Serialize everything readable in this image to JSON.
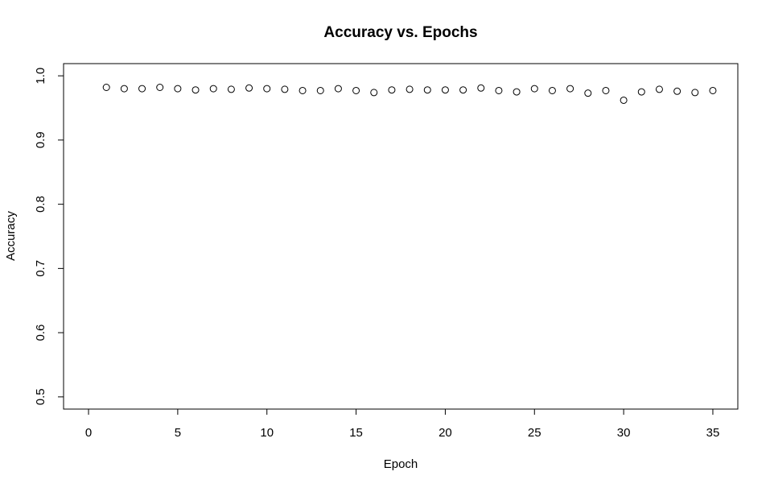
{
  "chart_data": {
    "type": "scatter",
    "title": "Accuracy vs. Epochs",
    "xlabel": "Epoch",
    "ylabel": "Accuracy",
    "xlim": [
      -1.4,
      36.4
    ],
    "ylim": [
      0.481,
      1.019
    ],
    "xticks": [
      0,
      5,
      10,
      15,
      20,
      25,
      30,
      35
    ],
    "yticks": [
      0.5,
      0.6,
      0.7,
      0.8,
      0.9,
      1.0
    ],
    "ytick_labels": [
      "0.5",
      "0.6",
      "0.7",
      "0.8",
      "0.9",
      "1.0"
    ],
    "grid": false,
    "legend": "none",
    "marker": "open-circle",
    "x": [
      1,
      2,
      3,
      4,
      5,
      6,
      7,
      8,
      9,
      10,
      11,
      12,
      13,
      14,
      15,
      16,
      17,
      18,
      19,
      20,
      21,
      22,
      23,
      24,
      25,
      26,
      27,
      28,
      29,
      30,
      31,
      32,
      33,
      34,
      35
    ],
    "y": [
      0.982,
      0.98,
      0.98,
      0.982,
      0.98,
      0.978,
      0.98,
      0.979,
      0.981,
      0.98,
      0.979,
      0.977,
      0.977,
      0.98,
      0.977,
      0.974,
      0.978,
      0.979,
      0.978,
      0.978,
      0.978,
      0.981,
      0.977,
      0.975,
      0.98,
      0.977,
      0.98,
      0.973,
      0.977,
      0.962,
      0.975,
      0.979,
      0.976,
      0.974,
      0.977
    ]
  }
}
